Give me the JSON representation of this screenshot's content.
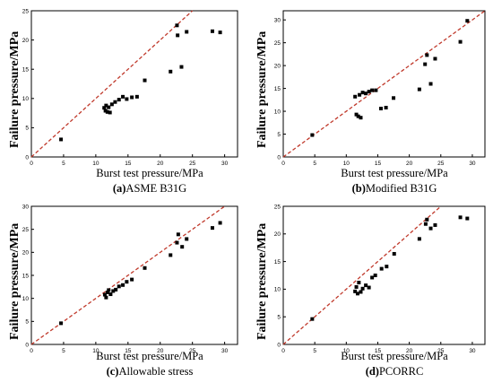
{
  "chart_data": [
    {
      "type": "scatter",
      "panel_id": "a",
      "caption_letter": "(a)",
      "caption_text": "ASME B31G",
      "xlabel": "Burst test pressure/MPa",
      "ylabel": "Failure pressure/MPa",
      "xlim": [
        0,
        32
      ],
      "ylim": [
        0,
        25
      ],
      "xticks": [
        0,
        5,
        10,
        15,
        20,
        25,
        30
      ],
      "yticks": [
        0,
        5,
        10,
        15,
        20,
        25
      ],
      "reference_line": "y = x (red dashed)",
      "marker": "black square",
      "points": [
        [
          4.6,
          3.0
        ],
        [
          11.3,
          8.4
        ],
        [
          11.5,
          7.9
        ],
        [
          11.6,
          8.8
        ],
        [
          11.8,
          7.7
        ],
        [
          12.0,
          8.5
        ],
        [
          12.2,
          7.6
        ],
        [
          12.5,
          9.0
        ],
        [
          13.0,
          9.4
        ],
        [
          13.6,
          9.8
        ],
        [
          14.2,
          10.3
        ],
        [
          14.8,
          9.9
        ],
        [
          15.6,
          10.2
        ],
        [
          16.4,
          10.3
        ],
        [
          17.6,
          13.1
        ],
        [
          21.6,
          14.6
        ],
        [
          22.6,
          22.5
        ],
        [
          22.7,
          20.8
        ],
        [
          23.3,
          15.4
        ],
        [
          24.1,
          21.4
        ],
        [
          28.1,
          21.5
        ],
        [
          29.3,
          21.3
        ]
      ]
    },
    {
      "type": "scatter",
      "panel_id": "b",
      "caption_letter": "(b)",
      "caption_text": "Modified B31G",
      "xlabel": "Burst test pressure/MPa",
      "ylabel": "Failure pressure/MPa",
      "xlim": [
        0,
        32
      ],
      "ylim": [
        0,
        32
      ],
      "xticks": [
        0,
        5,
        10,
        15,
        20,
        25,
        30
      ],
      "yticks": [
        0,
        5,
        10,
        15,
        20,
        25,
        30
      ],
      "reference_line": "y = x (red dashed)",
      "marker": "black square",
      "points": [
        [
          4.6,
          4.8
        ],
        [
          11.4,
          13.2
        ],
        [
          11.6,
          9.3
        ],
        [
          11.9,
          8.9
        ],
        [
          12.1,
          13.6
        ],
        [
          12.3,
          8.6
        ],
        [
          12.6,
          14.1
        ],
        [
          13.1,
          13.9
        ],
        [
          13.6,
          14.3
        ],
        [
          14.1,
          14.6
        ],
        [
          14.7,
          14.6
        ],
        [
          15.5,
          10.6
        ],
        [
          16.3,
          10.8
        ],
        [
          17.5,
          12.9
        ],
        [
          21.6,
          14.8
        ],
        [
          22.5,
          20.3
        ],
        [
          22.8,
          22.3
        ],
        [
          23.4,
          16.0
        ],
        [
          24.1,
          21.5
        ],
        [
          28.1,
          25.2
        ],
        [
          29.2,
          29.8
        ]
      ]
    },
    {
      "type": "scatter",
      "panel_id": "c",
      "caption_letter": "(c)",
      "caption_text": "Allowable stress",
      "xlabel": "Burst test pressure/MPa",
      "ylabel": "Failure pressure/MPa",
      "xlim": [
        0,
        32
      ],
      "ylim": [
        0,
        30
      ],
      "xticks": [
        0,
        5,
        10,
        15,
        20,
        25,
        30
      ],
      "yticks": [
        0,
        5,
        10,
        15,
        20,
        25,
        30
      ],
      "reference_line": "y = x (red dashed)",
      "marker": "black square",
      "points": [
        [
          4.6,
          4.6
        ],
        [
          11.4,
          10.8
        ],
        [
          11.6,
          10.2
        ],
        [
          11.8,
          11.3
        ],
        [
          12.0,
          11.8
        ],
        [
          12.3,
          10.9
        ],
        [
          12.7,
          11.6
        ],
        [
          13.1,
          11.9
        ],
        [
          13.6,
          12.6
        ],
        [
          14.2,
          12.9
        ],
        [
          14.8,
          13.6
        ],
        [
          15.6,
          14.1
        ],
        [
          17.6,
          16.6
        ],
        [
          21.6,
          19.4
        ],
        [
          22.6,
          22.1
        ],
        [
          22.8,
          23.9
        ],
        [
          23.4,
          21.2
        ],
        [
          24.1,
          22.9
        ],
        [
          28.1,
          25.3
        ],
        [
          29.3,
          26.4
        ]
      ]
    },
    {
      "type": "scatter",
      "panel_id": "d",
      "caption_letter": "(d)",
      "caption_text": "PCORRC",
      "xlabel": "Burst test pressure/MPa",
      "ylabel": "Failure pressure/MPa",
      "xlim": [
        0,
        32
      ],
      "ylim": [
        0,
        25
      ],
      "xticks": [
        0,
        5,
        10,
        15,
        20,
        25,
        30
      ],
      "yticks": [
        0,
        5,
        10,
        15,
        20,
        25
      ],
      "reference_line": "y = x (red dashed)",
      "marker": "black square",
      "points": [
        [
          4.6,
          4.6
        ],
        [
          11.4,
          9.6
        ],
        [
          11.6,
          10.4
        ],
        [
          11.8,
          9.2
        ],
        [
          12.0,
          11.2
        ],
        [
          12.3,
          9.5
        ],
        [
          12.6,
          10.1
        ],
        [
          13.1,
          10.7
        ],
        [
          13.6,
          10.3
        ],
        [
          14.1,
          12.1
        ],
        [
          14.6,
          12.5
        ],
        [
          15.6,
          13.7
        ],
        [
          16.4,
          14.1
        ],
        [
          17.6,
          16.4
        ],
        [
          21.6,
          19.1
        ],
        [
          22.6,
          21.8
        ],
        [
          22.8,
          22.6
        ],
        [
          23.4,
          21.0
        ],
        [
          24.1,
          21.6
        ],
        [
          28.1,
          23.0
        ],
        [
          29.2,
          22.8
        ]
      ]
    }
  ]
}
